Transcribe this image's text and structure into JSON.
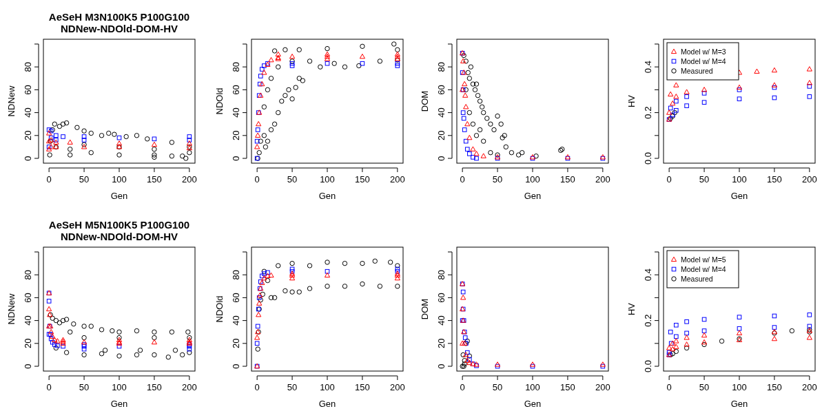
{
  "chart_data": [
    {
      "type": "scatter",
      "title": "AeSeH M3N100K5 P100G100 NDNew-NDOld-DOM-HV",
      "xlabel": "Gen",
      "ylabel": "NDNew",
      "xlim": [
        -8,
        208
      ],
      "xticks": [
        0,
        50,
        100,
        150,
        200
      ],
      "ylim": [
        -4.2,
        104.2
      ],
      "yticks": [
        0,
        20,
        40,
        60,
        80,
        {
          "value": 100,
          "label": null
        }
      ],
      "series": [
        {
          "color": "#ff0000",
          "marker": "triangle",
          "x": [
            0,
            0,
            0,
            3,
            3,
            10,
            10,
            30,
            50,
            100,
            100,
            150,
            200,
            200
          ],
          "values": [
            8,
            15,
            22,
            16,
            10,
            14,
            10,
            14,
            10,
            13,
            10,
            12,
            13,
            9
          ]
        },
        {
          "color": "#0000ff",
          "marker": "square",
          "x": [
            0,
            0,
            3,
            3,
            10,
            10,
            20,
            50,
            50,
            100,
            150,
            200,
            200
          ],
          "values": [
            10,
            25,
            24,
            18,
            20,
            16,
            19,
            19,
            16,
            18,
            17,
            19,
            16
          ]
        },
        {
          "color": "#000000",
          "marker": "circle",
          "x": [
            1,
            2,
            5,
            8,
            15,
            20,
            25,
            30,
            40,
            50,
            60,
            75,
            85,
            93,
            110,
            125,
            140,
            150,
            175,
            195,
            200,
            30,
            60,
            100,
            150,
            190,
            10,
            50,
            100,
            150,
            200,
            175
          ],
          "values": [
            3,
            15,
            25,
            30,
            28,
            30,
            31,
            8,
            27,
            24,
            22,
            20,
            22,
            21,
            19,
            20,
            17,
            1,
            2,
            0,
            5,
            3,
            5,
            3,
            3,
            2,
            10,
            12,
            10,
            8,
            10,
            14
          ]
        }
      ]
    },
    {
      "type": "scatter",
      "xlabel": "Gen",
      "ylabel": "NDOld",
      "xlim": [
        -8,
        208
      ],
      "xticks": [
        0,
        50,
        100,
        150,
        200
      ],
      "ylim": [
        -4.2,
        104.2
      ],
      "yticks": [
        0,
        20,
        40,
        60,
        80,
        {
          "value": 100,
          "label": null
        }
      ],
      "series": [
        {
          "color": "#ff0000",
          "marker": "triangle",
          "x": [
            0,
            1,
            2,
            3,
            5,
            7,
            10,
            15,
            20,
            30,
            50,
            100,
            150,
            200,
            30,
            100,
            200,
            30,
            100,
            200
          ],
          "values": [
            10,
            20,
            30,
            40,
            55,
            65,
            75,
            82,
            86,
            88,
            89,
            89,
            89,
            89,
            91,
            91,
            91,
            87,
            87,
            87
          ]
        },
        {
          "color": "#0000ff",
          "marker": "square",
          "x": [
            0,
            0,
            1,
            2,
            3,
            4,
            5,
            7,
            10,
            15,
            50,
            100,
            150,
            200,
            50,
            200
          ],
          "values": [
            0,
            15,
            25,
            40,
            55,
            65,
            72,
            78,
            81,
            83,
            83,
            83,
            83,
            83,
            81,
            81
          ]
        },
        {
          "color": "#000000",
          "marker": "circle",
          "x": [
            1,
            3,
            5,
            10,
            12,
            15,
            20,
            25,
            30,
            35,
            40,
            45,
            50,
            55,
            60,
            65,
            25,
            40,
            60,
            100,
            150,
            195,
            200,
            75,
            90,
            110,
            125,
            145,
            175,
            200,
            15,
            20,
            30,
            50,
            10
          ],
          "values": [
            0,
            5,
            15,
            20,
            10,
            15,
            25,
            30,
            40,
            50,
            55,
            60,
            52,
            62,
            70,
            68,
            94,
            95,
            95,
            96,
            98,
            100,
            95,
            85,
            80,
            83,
            80,
            81,
            85,
            86,
            60,
            70,
            80,
            85,
            45
          ]
        }
      ]
    },
    {
      "type": "scatter",
      "xlabel": "Gen",
      "ylabel": "DOM",
      "xlim": [
        -8,
        208
      ],
      "xticks": [
        0,
        50,
        100,
        150,
        200
      ],
      "ylim": [
        -4.2,
        104.2
      ],
      "yticks": [
        0,
        20,
        40,
        60,
        80,
        {
          "value": 100,
          "label": null
        }
      ],
      "series": [
        {
          "color": "#ff0000",
          "marker": "triangle",
          "x": [
            0,
            0,
            1,
            2,
            3,
            4,
            5,
            7,
            10,
            15,
            20,
            30,
            50,
            100,
            150,
            200
          ],
          "values": [
            92,
            60,
            85,
            75,
            65,
            55,
            45,
            30,
            18,
            8,
            4,
            2,
            1,
            1,
            1,
            1
          ]
        },
        {
          "color": "#0000ff",
          "marker": "square",
          "x": [
            0,
            0,
            1,
            1,
            2,
            3,
            5,
            7,
            10,
            15,
            20,
            50,
            100,
            150,
            200
          ],
          "values": [
            92,
            75,
            60,
            40,
            35,
            25,
            15,
            8,
            4,
            1,
            0,
            0,
            0,
            0,
            0
          ]
        },
        {
          "color": "#000000",
          "marker": "circle",
          "x": [
            2,
            5,
            8,
            10,
            12,
            15,
            18,
            20,
            22,
            25,
            28,
            30,
            35,
            40,
            45,
            50,
            55,
            57,
            60,
            62,
            70,
            80,
            85,
            105,
            140,
            142,
            20,
            30,
            40,
            50,
            15,
            25,
            10,
            5
          ],
          "values": [
            90,
            85,
            75,
            70,
            80,
            65,
            60,
            65,
            55,
            50,
            45,
            40,
            35,
            30,
            25,
            37,
            30,
            18,
            20,
            10,
            5,
            3,
            5,
            2,
            7,
            8,
            20,
            15,
            5,
            3,
            30,
            25,
            40,
            60
          ]
        }
      ]
    },
    {
      "type": "scatter",
      "xlabel": "Gen",
      "ylabel": "HV",
      "legend": "top left",
      "xlim": [
        -8,
        208
      ],
      "xticks": [
        0,
        50,
        100,
        150,
        200
      ],
      "ylim": [
        -0.021,
        0.521
      ],
      "yticks": [
        {
          "value": 0,
          "label": "0.0"
        },
        {
          "value": 0.1,
          "label": null
        },
        0.2,
        {
          "value": 0.3,
          "label": null
        },
        0.4,
        {
          "value": 0.5,
          "label": null
        }
      ],
      "series": [
        {
          "name": "Model w/ M=3",
          "color": "#ff0000",
          "marker": "triangle",
          "x": [
            0,
            2,
            10,
            125,
            100,
            150,
            200,
            0,
            5,
            10,
            25,
            50,
            100,
            150,
            200
          ],
          "values": [
            0.2,
            0.28,
            0.32,
            0.38,
            0.375,
            0.385,
            0.39,
            0.17,
            0.24,
            0.27,
            0.29,
            0.3,
            0.31,
            0.32,
            0.33
          ]
        },
        {
          "name": "Model w/ M=4",
          "color": "#0000ff",
          "marker": "square",
          "x": [
            2,
            10,
            25,
            50,
            100,
            150,
            200,
            0,
            5,
            10,
            25,
            50,
            100,
            150,
            200
          ],
          "values": [
            0.22,
            0.25,
            0.27,
            0.285,
            0.3,
            0.31,
            0.315,
            0.17,
            0.19,
            0.21,
            0.23,
            0.245,
            0.26,
            0.265,
            0.27
          ]
        },
        {
          "name": "Measured",
          "color": "#000000",
          "marker": "circle",
          "x": [
            2,
            5,
            8
          ],
          "values": [
            0.175,
            0.185,
            0.2
          ]
        }
      ]
    },
    {
      "type": "scatter",
      "title": "AeSeH M5N100K5 P100G100 NDNew-NDOld-DOM-HV",
      "xlabel": "Gen",
      "ylabel": "NDNew",
      "xlim": [
        -8,
        208
      ],
      "xticks": [
        0,
        50,
        100,
        150,
        200
      ],
      "ylim": [
        -4.2,
        104.2
      ],
      "yticks": [
        0,
        20,
        40,
        60,
        80,
        {
          "value": 100,
          "label": null
        }
      ],
      "series": [
        {
          "color": "#ff0000",
          "marker": "triangle",
          "x": [
            0,
            0,
            0,
            1,
            2,
            3,
            5,
            8,
            12,
            20,
            50,
            100,
            150,
            200,
            20,
            100,
            200,
            20,
            100,
            200
          ],
          "values": [
            64,
            50,
            35,
            45,
            35,
            30,
            26,
            23,
            22,
            21.5,
            21,
            21,
            21,
            21,
            23,
            23,
            23,
            20,
            20,
            20
          ]
        },
        {
          "color": "#0000ff",
          "marker": "square",
          "x": [
            0,
            0,
            0,
            1,
            2,
            3,
            5,
            8,
            12,
            20,
            50,
            100,
            200,
            50,
            200,
            50,
            200
          ],
          "values": [
            64,
            57,
            28,
            35,
            28,
            24,
            21,
            19,
            18,
            17.5,
            17.5,
            17.5,
            17.5,
            19,
            19,
            15,
            15
          ]
        },
        {
          "color": "#000000",
          "marker": "circle",
          "x": [
            2,
            5,
            10,
            15,
            20,
            25,
            35,
            50,
            60,
            75,
            90,
            100,
            125,
            150,
            175,
            198,
            10,
            25,
            50,
            75,
            100,
            125,
            150,
            170,
            190,
            200,
            50,
            100,
            150,
            200,
            30,
            80,
            130,
            180
          ],
          "values": [
            45,
            42,
            40,
            38,
            40,
            41,
            37,
            35,
            35,
            32,
            31,
            30,
            31,
            30,
            30,
            30,
            16,
            12,
            10,
            11,
            9,
            10,
            10,
            8,
            10,
            12,
            25,
            25,
            25,
            25,
            30,
            14,
            14,
            14
          ]
        }
      ]
    },
    {
      "type": "scatter",
      "xlabel": "Gen",
      "ylabel": "NDOld",
      "xlim": [
        -8,
        208
      ],
      "xticks": [
        0,
        50,
        100,
        150,
        200
      ],
      "ylim": [
        -4.2,
        104.2
      ],
      "yticks": [
        0,
        20,
        40,
        60,
        80,
        {
          "value": 100,
          "label": null
        }
      ],
      "series": [
        {
          "color": "#ff0000",
          "marker": "triangle",
          "x": [
            0,
            0,
            1,
            2,
            3,
            4,
            5,
            7,
            10,
            15,
            20,
            50,
            100,
            200,
            50,
            200,
            50,
            200
          ],
          "values": [
            0,
            25,
            30,
            45,
            55,
            62,
            68,
            73,
            77,
            79,
            79.5,
            79.5,
            79.5,
            79.5,
            81,
            81,
            77,
            77
          ]
        },
        {
          "color": "#0000ff",
          "marker": "square",
          "x": [
            0,
            0,
            1,
            2,
            3,
            4,
            5,
            7,
            10,
            15,
            50,
            100,
            200,
            50,
            200
          ],
          "values": [
            0,
            20,
            35,
            50,
            60,
            68,
            74,
            79,
            81,
            82,
            83,
            83,
            83,
            85,
            85
          ]
        },
        {
          "color": "#000000",
          "marker": "circle",
          "x": [
            1,
            2,
            3,
            5,
            8,
            10,
            15,
            20,
            25,
            30,
            50,
            60,
            75,
            100,
            125,
            150,
            168,
            190,
            200,
            200,
            175,
            150,
            125,
            100,
            75,
            50,
            40
          ],
          "values": [
            15,
            30,
            50,
            58,
            63,
            83,
            75,
            60,
            60,
            88,
            90,
            65,
            88,
            91,
            90,
            90,
            92,
            91,
            88,
            70,
            70,
            72,
            70,
            70,
            68,
            65,
            66
          ]
        }
      ]
    },
    {
      "type": "scatter",
      "xlabel": "Gen",
      "ylabel": "DOM",
      "xlim": [
        -8,
        208
      ],
      "xticks": [
        0,
        50,
        100,
        150,
        200
      ],
      "ylim": [
        -4.2,
        104.2
      ],
      "yticks": [
        0,
        20,
        40,
        60,
        80,
        {
          "value": 100,
          "label": null
        }
      ],
      "series": [
        {
          "color": "#ff0000",
          "marker": "triangle",
          "x": [
            0,
            0,
            0,
            1,
            1,
            2,
            3,
            5,
            7,
            10,
            15,
            20,
            50,
            100,
            200
          ],
          "values": [
            72,
            50,
            20,
            60,
            40,
            30,
            20,
            10,
            5,
            3,
            2,
            1.5,
            1.5,
            1.5,
            1.5
          ]
        },
        {
          "color": "#0000ff",
          "marker": "square",
          "x": [
            0,
            0,
            1,
            1,
            2,
            3,
            4,
            5,
            7,
            10,
            15,
            20,
            50,
            100,
            200
          ],
          "values": [
            72,
            40,
            65,
            50,
            40,
            30,
            25,
            20,
            12,
            6,
            2,
            0.5,
            0,
            0,
            0
          ]
        },
        {
          "color": "#000000",
          "marker": "circle",
          "x": [
            0,
            2,
            3,
            5,
            7,
            10,
            1,
            3
          ],
          "values": [
            0,
            0,
            2,
            20,
            22,
            9,
            10,
            5
          ]
        }
      ]
    },
    {
      "type": "scatter",
      "xlabel": "Gen",
      "ylabel": "HV",
      "legend": "top left",
      "xlim": [
        -8,
        208
      ],
      "xticks": [
        0,
        50,
        100,
        150,
        200
      ],
      "ylim": [
        -0.021,
        0.521
      ],
      "yticks": [
        {
          "value": 0,
          "label": "0.0"
        },
        {
          "value": 0.1,
          "label": null
        },
        0.2,
        {
          "value": 0.3,
          "label": null
        },
        0.4,
        {
          "value": 0.5,
          "label": null
        }
      ],
      "series": [
        {
          "name": "Model w/ M=5",
          "color": "#ff0000",
          "marker": "triangle",
          "x": [
            0,
            5,
            10,
            25,
            50,
            100,
            150,
            200,
            0,
            5,
            10,
            25,
            50,
            100,
            150,
            200
          ],
          "values": [
            0.08,
            0.1,
            0.11,
            0.125,
            0.135,
            0.145,
            0.15,
            0.155,
            0.05,
            0.075,
            0.085,
            0.095,
            0.105,
            0.115,
            0.12,
            0.125
          ]
        },
        {
          "name": "Model w/ M=4",
          "color": "#0000ff",
          "marker": "square",
          "x": [
            0,
            2,
            10,
            25,
            50,
            100,
            150,
            200,
            0,
            3,
            10,
            25,
            50,
            100,
            150,
            200
          ],
          "values": [
            0.06,
            0.15,
            0.18,
            0.195,
            0.205,
            0.215,
            0.22,
            0.225,
            0.05,
            0.1,
            0.13,
            0.145,
            0.155,
            0.165,
            0.17,
            0.175
          ]
        },
        {
          "name": "Measured",
          "color": "#000000",
          "marker": "circle",
          "x": [
            2,
            5,
            10,
            25,
            50,
            75,
            100,
            150,
            175,
            200,
            200
          ],
          "values": [
            0.05,
            0.055,
            0.065,
            0.08,
            0.095,
            0.11,
            0.12,
            0.145,
            0.155,
            0.16,
            0.15
          ]
        }
      ]
    }
  ]
}
